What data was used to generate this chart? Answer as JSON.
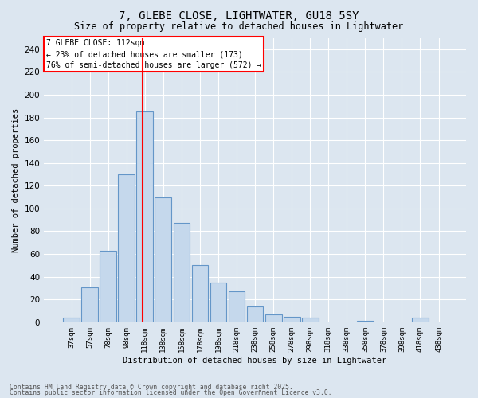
{
  "title1": "7, GLEBE CLOSE, LIGHTWATER, GU18 5SY",
  "title2": "Size of property relative to detached houses in Lightwater",
  "xlabel": "Distribution of detached houses by size in Lightwater",
  "ylabel": "Number of detached properties",
  "bar_color": "#c5d8ec",
  "bar_edge_color": "#6496c8",
  "bg_color": "#dce6f0",
  "grid_color": "#ffffff",
  "fig_bg_color": "#dce6f0",
  "categories": [
    "37sqm",
    "57sqm",
    "78sqm",
    "98sqm",
    "118sqm",
    "138sqm",
    "158sqm",
    "178sqm",
    "198sqm",
    "218sqm",
    "238sqm",
    "258sqm",
    "278sqm",
    "298sqm",
    "318sqm",
    "338sqm",
    "358sqm",
    "378sqm",
    "398sqm",
    "418sqm",
    "438sqm"
  ],
  "values": [
    4,
    31,
    63,
    130,
    185,
    110,
    87,
    50,
    35,
    27,
    14,
    7,
    5,
    4,
    0,
    0,
    1,
    0,
    0,
    4,
    0
  ],
  "property_label": "7 GLEBE CLOSE: 112sqm",
  "annotation_line1": "← 23% of detached houses are smaller (173)",
  "annotation_line2": "76% of semi-detached houses are larger (572) →",
  "vline_x_index": 3.87,
  "ylim": [
    0,
    250
  ],
  "yticks": [
    0,
    20,
    40,
    60,
    80,
    100,
    120,
    140,
    160,
    180,
    200,
    220,
    240
  ],
  "footer_line1": "Contains HM Land Registry data © Crown copyright and database right 2025.",
  "footer_line2": "Contains public sector information licensed under the Open Government Licence v3.0."
}
